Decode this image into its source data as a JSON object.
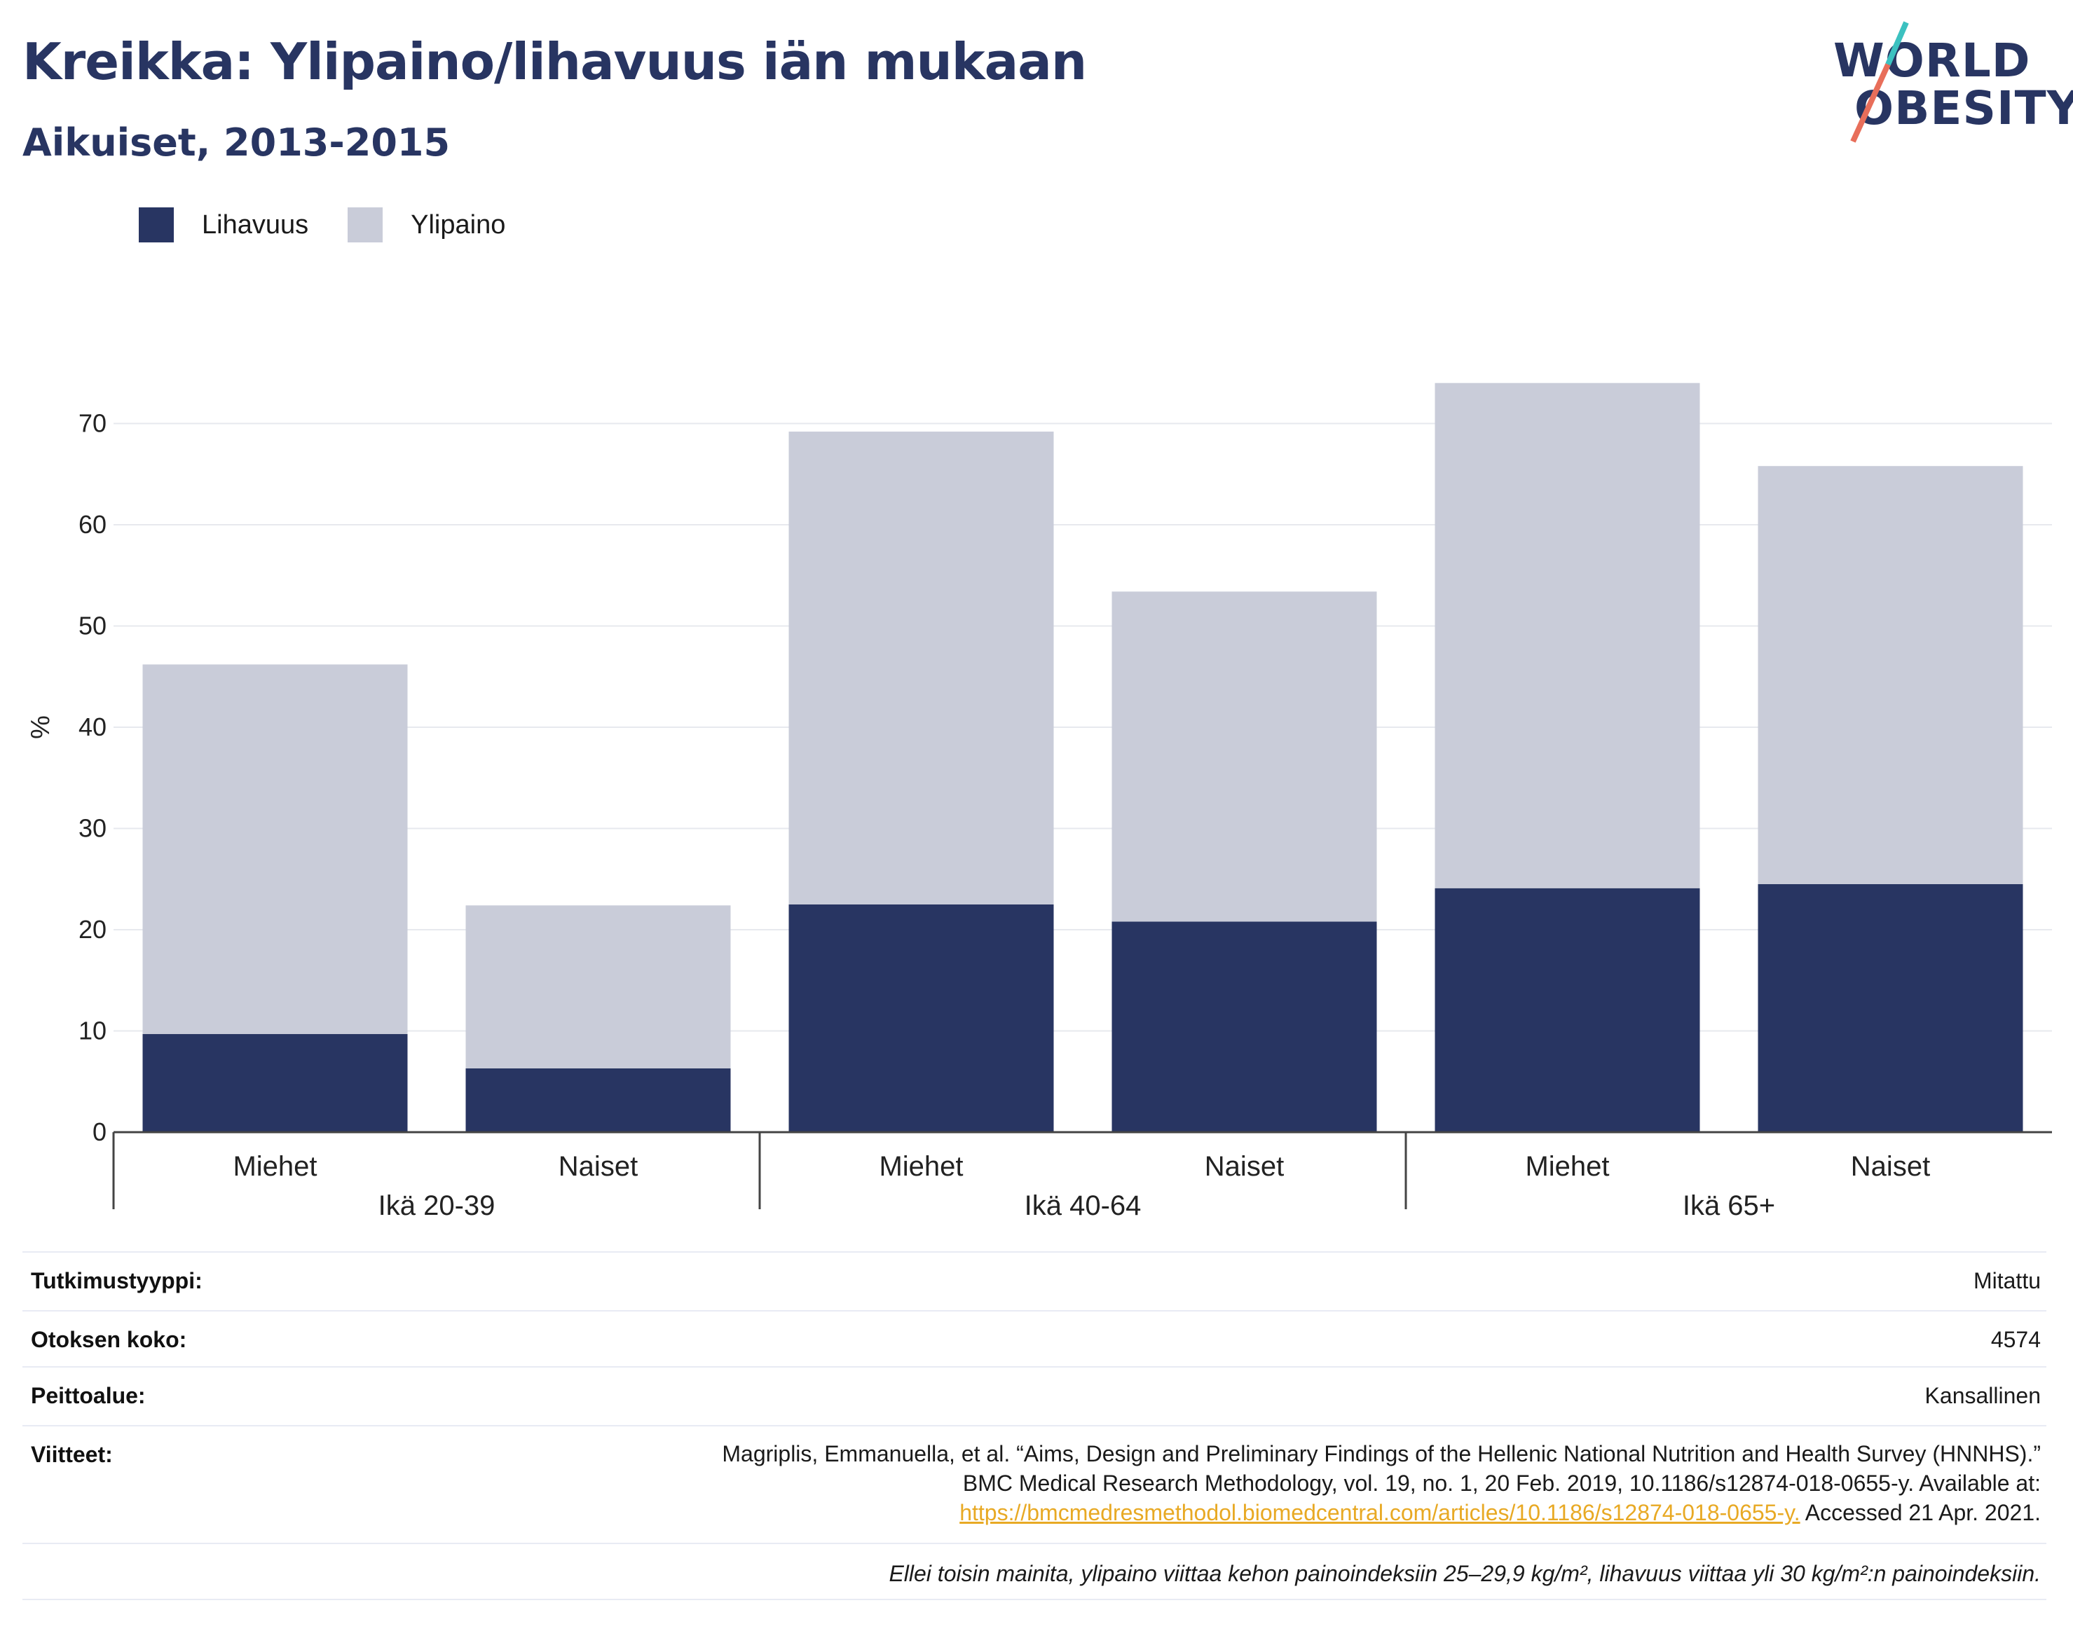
{
  "header": {
    "title": "Kreikka: Ylipaino/lihavuus iän mukaan",
    "subtitle": "Aikuiset, 2013-2015"
  },
  "logo": {
    "line1": "WORLD",
    "line2": "OBESITY"
  },
  "legend": [
    {
      "label": "Lihavuus",
      "color": "#283562"
    },
    {
      "label": "Ylipaino",
      "color": "#c9ccd9"
    }
  ],
  "chart_data": {
    "type": "bar",
    "stacked": true,
    "ylabel": "%",
    "ylim": [
      0,
      80
    ],
    "yticks": [
      0,
      10,
      20,
      30,
      40,
      50,
      60,
      70
    ],
    "grid": true,
    "legend_position": "top-left",
    "categories": [
      "Miehet",
      "Naiset",
      "Miehet",
      "Naiset",
      "Miehet",
      "Naiset"
    ],
    "groups": [
      {
        "label": "Ikä 20-39",
        "categories": [
          0,
          1
        ]
      },
      {
        "label": "Ikä 40-64",
        "categories": [
          2,
          3
        ]
      },
      {
        "label": "Ikä 65+",
        "categories": [
          4,
          5
        ]
      }
    ],
    "series": [
      {
        "name": "Lihavuus",
        "color": "#283562",
        "values": [
          9.7,
          6.3,
          22.5,
          20.8,
          24.1,
          24.5
        ]
      },
      {
        "name": "Ylipaino",
        "color": "#c9ccd9",
        "values": [
          36.5,
          16.1,
          46.7,
          32.6,
          49.9,
          41.3
        ]
      }
    ],
    "totals": [
      46.2,
      22.4,
      69.2,
      53.4,
      74.0,
      65.8
    ]
  },
  "info": {
    "study_type_label": "Tutkimustyyppi:",
    "study_type_value": "Mitattu",
    "sample_size_label": "Otoksen koko:",
    "sample_size_value": "4574",
    "coverage_label": "Peittoalue:",
    "coverage_value": "Kansallinen",
    "references_label": "Viitteet:",
    "reference_line1": "Magriplis, Emmanuella, et al. “Aims, Design and Preliminary Findings of the Hellenic National Nutrition and Health Survey (HNNHS).”",
    "reference_line2": "BMC Medical Research Methodology, vol. 19, no. 1, 20 Feb. 2019, 10.1186/s12874-018-0655-y. Available at:",
    "reference_link": "https://bmcmedresmethodol.biomedcentral.com/articles/10.1186/s12874-018-0655-y.",
    "reference_accessed": " Accessed 21 Apr. 2021.",
    "note": "Ellei toisin mainita, ylipaino viittaa kehon painoindeksiin 25–29,9 kg/m², lihavuus viittaa yli 30 kg/m²:n painoindeksiin."
  }
}
